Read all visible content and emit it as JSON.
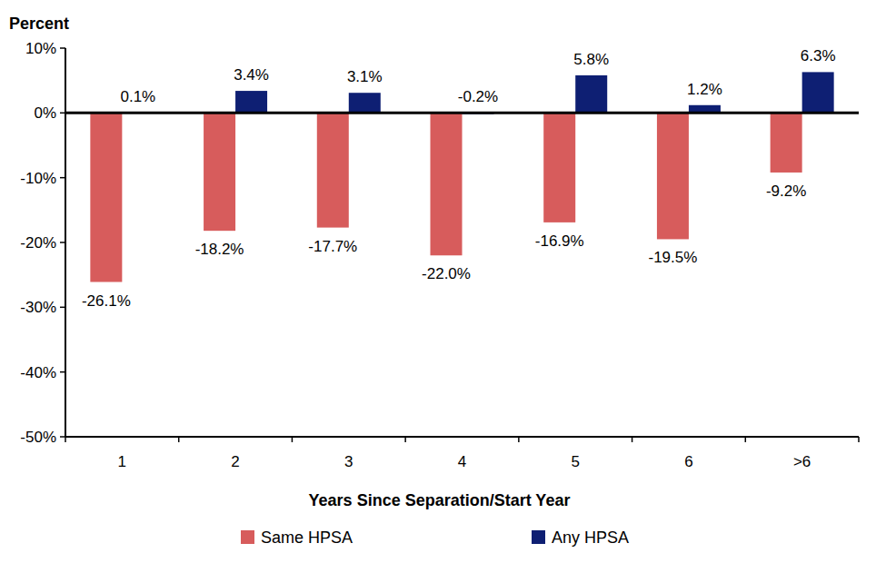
{
  "chart_data": {
    "type": "bar",
    "ylabel": "Percent",
    "xlabel": "Years Since Separation/Start Year",
    "categories": [
      "1",
      "2",
      "3",
      "4",
      "5",
      "6",
      ">6"
    ],
    "series": [
      {
        "name": "Same HPSA",
        "color": "#d75c5c",
        "values": [
          -26.1,
          -18.2,
          -17.7,
          -22.0,
          -16.9,
          -19.5,
          -9.2
        ],
        "value_labels": [
          "-26.1%",
          "-18.2%",
          "-17.7%",
          "-22.0%",
          "-16.9%",
          "-19.5%",
          "-9.2%"
        ]
      },
      {
        "name": "Any HPSA",
        "color": "#0e1f73",
        "values": [
          0.1,
          3.4,
          3.1,
          -0.2,
          5.8,
          1.2,
          6.3
        ],
        "value_labels": [
          "0.1%",
          "3.4%",
          "3.1%",
          "-0.2%",
          "5.8%",
          "1.2%",
          "6.3%"
        ]
      }
    ],
    "ylim": [
      -50,
      10
    ],
    "yticks": [
      {
        "value": -50,
        "label": "-50%"
      },
      {
        "value": -40,
        "label": "-40%"
      },
      {
        "value": -30,
        "label": "-30%"
      },
      {
        "value": -20,
        "label": "-20%"
      },
      {
        "value": -10,
        "label": "-10%"
      },
      {
        "value": 0,
        "label": "0%"
      },
      {
        "value": 10,
        "label": "10%"
      }
    ],
    "grid": false,
    "legend": "bottom",
    "data_labels": true
  }
}
